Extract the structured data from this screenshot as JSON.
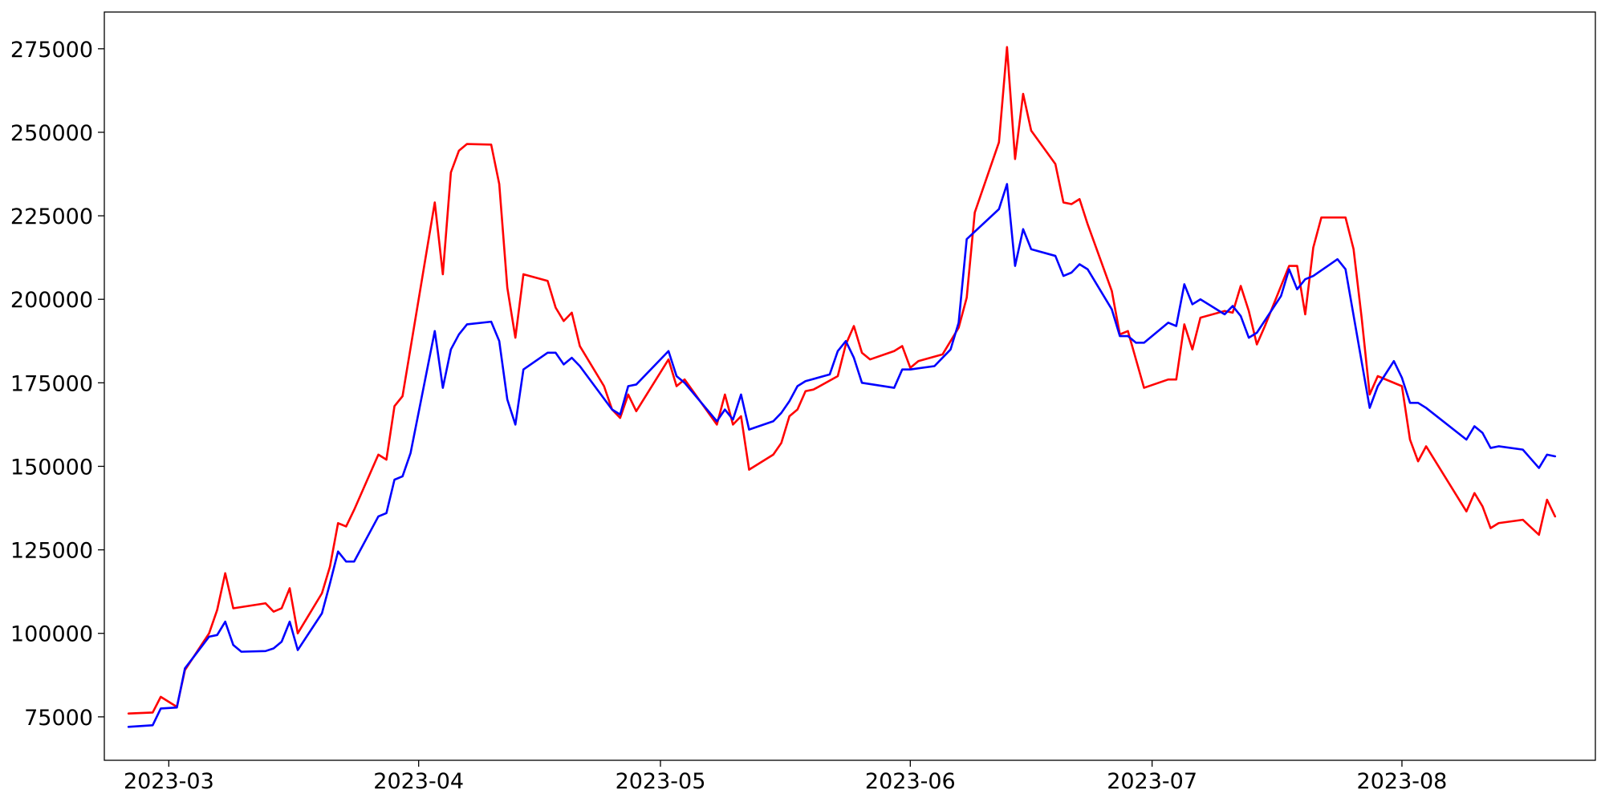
{
  "chart_data": {
    "type": "line",
    "title": "",
    "xlabel": "",
    "ylabel": "",
    "xlim": [
      "2023-02-21",
      "2023-08-25"
    ],
    "ylim": [
      62000,
      286000
    ],
    "grid": false,
    "legend": "none",
    "x_ticks": [
      {
        "date": "2023-03-01",
        "label": "2023-03"
      },
      {
        "date": "2023-04-01",
        "label": "2023-04"
      },
      {
        "date": "2023-05-01",
        "label": "2023-05"
      },
      {
        "date": "2023-06-01",
        "label": "2023-06"
      },
      {
        "date": "2023-07-01",
        "label": "2023-07"
      },
      {
        "date": "2023-08-01",
        "label": "2023-08"
      }
    ],
    "y_ticks": [
      75000,
      100000,
      125000,
      150000,
      175000,
      200000,
      225000,
      250000,
      275000
    ],
    "series": [
      {
        "color": "#ff0000",
        "points": [
          [
            "2023-02-24",
            76000
          ],
          [
            "2023-02-27",
            76300
          ],
          [
            "2023-02-28",
            81000
          ],
          [
            "2023-03-02",
            78000
          ],
          [
            "2023-03-03",
            89000
          ],
          [
            "2023-03-06",
            100000
          ],
          [
            "2023-03-07",
            107000
          ],
          [
            "2023-03-08",
            118000
          ],
          [
            "2023-03-09",
            107500
          ],
          [
            "2023-03-13",
            109000
          ],
          [
            "2023-03-14",
            106500
          ],
          [
            "2023-03-15",
            107500
          ],
          [
            "2023-03-16",
            113500
          ],
          [
            "2023-03-17",
            100000
          ],
          [
            "2023-03-20",
            112000
          ],
          [
            "2023-03-21",
            120000
          ],
          [
            "2023-03-22",
            133000
          ],
          [
            "2023-03-23",
            132000
          ],
          [
            "2023-03-24",
            137000
          ],
          [
            "2023-03-27",
            153500
          ],
          [
            "2023-03-28",
            152000
          ],
          [
            "2023-03-29",
            168000
          ],
          [
            "2023-03-30",
            171000
          ],
          [
            "2023-04-03",
            229000
          ],
          [
            "2023-04-04",
            207500
          ],
          [
            "2023-04-05",
            238000
          ],
          [
            "2023-04-06",
            244500
          ],
          [
            "2023-04-07",
            246500
          ],
          [
            "2023-04-10",
            246300
          ],
          [
            "2023-04-11",
            234500
          ],
          [
            "2023-04-12",
            203500
          ],
          [
            "2023-04-13",
            188500
          ],
          [
            "2023-04-14",
            207500
          ],
          [
            "2023-04-17",
            205500
          ],
          [
            "2023-04-18",
            197500
          ],
          [
            "2023-04-19",
            193500
          ],
          [
            "2023-04-20",
            196000
          ],
          [
            "2023-04-21",
            186000
          ],
          [
            "2023-04-24",
            174000
          ],
          [
            "2023-04-25",
            167000
          ],
          [
            "2023-04-26",
            164500
          ],
          [
            "2023-04-27",
            171500
          ],
          [
            "2023-04-28",
            166500
          ],
          [
            "2023-05-02",
            182000
          ],
          [
            "2023-05-03",
            174000
          ],
          [
            "2023-05-04",
            176000
          ],
          [
            "2023-05-08",
            162500
          ],
          [
            "2023-05-09",
            171500
          ],
          [
            "2023-05-10",
            162500
          ],
          [
            "2023-05-11",
            165000
          ],
          [
            "2023-05-12",
            149000
          ],
          [
            "2023-05-15",
            153500
          ],
          [
            "2023-05-16",
            157000
          ],
          [
            "2023-05-17",
            165000
          ],
          [
            "2023-05-18",
            167000
          ],
          [
            "2023-05-19",
            172500
          ],
          [
            "2023-05-20",
            173000
          ],
          [
            "2023-05-23",
            177000
          ],
          [
            "2023-05-24",
            186500
          ],
          [
            "2023-05-25",
            192000
          ],
          [
            "2023-05-26",
            184000
          ],
          [
            "2023-05-27",
            182000
          ],
          [
            "2023-05-30",
            184500
          ],
          [
            "2023-05-31",
            186000
          ],
          [
            "2023-06-01",
            179500
          ],
          [
            "2023-06-02",
            181500
          ],
          [
            "2023-06-05",
            183500
          ],
          [
            "2023-06-07",
            191500
          ],
          [
            "2023-06-08",
            200500
          ],
          [
            "2023-06-09",
            226000
          ],
          [
            "2023-06-12",
            247000
          ],
          [
            "2023-06-13",
            275500
          ],
          [
            "2023-06-14",
            242000
          ],
          [
            "2023-06-15",
            261500
          ],
          [
            "2023-06-16",
            250500
          ],
          [
            "2023-06-19",
            240500
          ],
          [
            "2023-06-20",
            229000
          ],
          [
            "2023-06-21",
            228500
          ],
          [
            "2023-06-22",
            230000
          ],
          [
            "2023-06-23",
            222500
          ],
          [
            "2023-06-26",
            202500
          ],
          [
            "2023-06-27",
            189500
          ],
          [
            "2023-06-28",
            190500
          ],
          [
            "2023-06-29",
            182000
          ],
          [
            "2023-06-30",
            173500
          ],
          [
            "2023-07-03",
            176000
          ],
          [
            "2023-07-04",
            176000
          ],
          [
            "2023-07-05",
            192500
          ],
          [
            "2023-07-06",
            185000
          ],
          [
            "2023-07-07",
            194500
          ],
          [
            "2023-07-10",
            196500
          ],
          [
            "2023-07-11",
            196000
          ],
          [
            "2023-07-12",
            204000
          ],
          [
            "2023-07-13",
            196500
          ],
          [
            "2023-07-14",
            186500
          ],
          [
            "2023-07-15",
            192000
          ],
          [
            "2023-07-18",
            210000
          ],
          [
            "2023-07-19",
            210000
          ],
          [
            "2023-07-20",
            195500
          ],
          [
            "2023-07-21",
            215500
          ],
          [
            "2023-07-22",
            224500
          ],
          [
            "2023-07-25",
            224500
          ],
          [
            "2023-07-26",
            215000
          ],
          [
            "2023-07-27",
            194500
          ],
          [
            "2023-07-28",
            171500
          ],
          [
            "2023-07-29",
            177000
          ],
          [
            "2023-08-01",
            174000
          ],
          [
            "2023-08-02",
            158000
          ],
          [
            "2023-08-03",
            151500
          ],
          [
            "2023-08-04",
            156000
          ],
          [
            "2023-08-09",
            136500
          ],
          [
            "2023-08-10",
            142000
          ],
          [
            "2023-08-11",
            138000
          ],
          [
            "2023-08-12",
            131500
          ],
          [
            "2023-08-13",
            133000
          ],
          [
            "2023-08-16",
            134000
          ],
          [
            "2023-08-18",
            129500
          ],
          [
            "2023-08-19",
            140000
          ],
          [
            "2023-08-20",
            135000
          ]
        ]
      },
      {
        "color": "#0000ff",
        "points": [
          [
            "2023-02-24",
            72000
          ],
          [
            "2023-02-27",
            72500
          ],
          [
            "2023-02-28",
            77500
          ],
          [
            "2023-03-02",
            77800
          ],
          [
            "2023-03-03",
            89500
          ],
          [
            "2023-03-06",
            99000
          ],
          [
            "2023-03-07",
            99500
          ],
          [
            "2023-03-08",
            103500
          ],
          [
            "2023-03-09",
            96500
          ],
          [
            "2023-03-10",
            94500
          ],
          [
            "2023-03-13",
            94700
          ],
          [
            "2023-03-14",
            95500
          ],
          [
            "2023-03-15",
            97500
          ],
          [
            "2023-03-16",
            103500
          ],
          [
            "2023-03-17",
            95000
          ],
          [
            "2023-03-20",
            106000
          ],
          [
            "2023-03-21",
            115000
          ],
          [
            "2023-03-22",
            124500
          ],
          [
            "2023-03-23",
            121500
          ],
          [
            "2023-03-24",
            121500
          ],
          [
            "2023-03-27",
            135000
          ],
          [
            "2023-03-28",
            136000
          ],
          [
            "2023-03-29",
            146000
          ],
          [
            "2023-03-30",
            147000
          ],
          [
            "2023-03-31",
            154000
          ],
          [
            "2023-04-03",
            190500
          ],
          [
            "2023-04-04",
            173500
          ],
          [
            "2023-04-05",
            185000
          ],
          [
            "2023-04-06",
            189500
          ],
          [
            "2023-04-07",
            192500
          ],
          [
            "2023-04-10",
            193300
          ],
          [
            "2023-04-11",
            187500
          ],
          [
            "2023-04-12",
            170000
          ],
          [
            "2023-04-13",
            162500
          ],
          [
            "2023-04-14",
            179000
          ],
          [
            "2023-04-17",
            184000
          ],
          [
            "2023-04-18",
            184000
          ],
          [
            "2023-04-19",
            180500
          ],
          [
            "2023-04-20",
            182500
          ],
          [
            "2023-04-21",
            180000
          ],
          [
            "2023-04-25",
            167000
          ],
          [
            "2023-04-26",
            165500
          ],
          [
            "2023-04-27",
            174000
          ],
          [
            "2023-04-28",
            174500
          ],
          [
            "2023-05-02",
            184500
          ],
          [
            "2023-05-03",
            177000
          ],
          [
            "2023-05-04",
            175000
          ],
          [
            "2023-05-08",
            163500
          ],
          [
            "2023-05-09",
            167000
          ],
          [
            "2023-05-10",
            164000
          ],
          [
            "2023-05-11",
            171500
          ],
          [
            "2023-05-12",
            161000
          ],
          [
            "2023-05-15",
            163500
          ],
          [
            "2023-05-16",
            166000
          ],
          [
            "2023-05-17",
            169500
          ],
          [
            "2023-05-18",
            174000
          ],
          [
            "2023-05-19",
            175500
          ],
          [
            "2023-05-22",
            177500
          ],
          [
            "2023-05-23",
            184500
          ],
          [
            "2023-05-24",
            187500
          ],
          [
            "2023-05-25",
            182500
          ],
          [
            "2023-05-26",
            175000
          ],
          [
            "2023-05-30",
            173500
          ],
          [
            "2023-05-31",
            179000
          ],
          [
            "2023-06-01",
            179000
          ],
          [
            "2023-06-04",
            180000
          ],
          [
            "2023-06-06",
            185000
          ],
          [
            "2023-06-07",
            193000
          ],
          [
            "2023-06-08",
            218000
          ],
          [
            "2023-06-12",
            227000
          ],
          [
            "2023-06-13",
            234500
          ],
          [
            "2023-06-14",
            210000
          ],
          [
            "2023-06-15",
            221000
          ],
          [
            "2023-06-16",
            215000
          ],
          [
            "2023-06-19",
            213000
          ],
          [
            "2023-06-20",
            207000
          ],
          [
            "2023-06-21",
            208000
          ],
          [
            "2023-06-22",
            210500
          ],
          [
            "2023-06-23",
            209000
          ],
          [
            "2023-06-26",
            197000
          ],
          [
            "2023-06-27",
            189000
          ],
          [
            "2023-06-28",
            189000
          ],
          [
            "2023-06-29",
            187000
          ],
          [
            "2023-06-30",
            187000
          ],
          [
            "2023-07-03",
            193000
          ],
          [
            "2023-07-04",
            192000
          ],
          [
            "2023-07-05",
            204500
          ],
          [
            "2023-07-06",
            198500
          ],
          [
            "2023-07-07",
            200000
          ],
          [
            "2023-07-10",
            195500
          ],
          [
            "2023-07-11",
            198000
          ],
          [
            "2023-07-12",
            195000
          ],
          [
            "2023-07-13",
            188500
          ],
          [
            "2023-07-14",
            190000
          ],
          [
            "2023-07-17",
            201000
          ],
          [
            "2023-07-18",
            209000
          ],
          [
            "2023-07-19",
            203000
          ],
          [
            "2023-07-20",
            206000
          ],
          [
            "2023-07-21",
            207000
          ],
          [
            "2023-07-24",
            212000
          ],
          [
            "2023-07-25",
            209000
          ],
          [
            "2023-07-28",
            167500
          ],
          [
            "2023-07-29",
            174000
          ],
          [
            "2023-07-31",
            181500
          ],
          [
            "2023-08-01",
            176500
          ],
          [
            "2023-08-02",
            169000
          ],
          [
            "2023-08-03",
            169000
          ],
          [
            "2023-08-04",
            167500
          ],
          [
            "2023-08-09",
            158000
          ],
          [
            "2023-08-10",
            162000
          ],
          [
            "2023-08-11",
            160000
          ],
          [
            "2023-08-12",
            155500
          ],
          [
            "2023-08-13",
            156000
          ],
          [
            "2023-08-16",
            155000
          ],
          [
            "2023-08-18",
            149500
          ],
          [
            "2023-08-19",
            153500
          ],
          [
            "2023-08-20",
            153000
          ]
        ]
      }
    ]
  }
}
